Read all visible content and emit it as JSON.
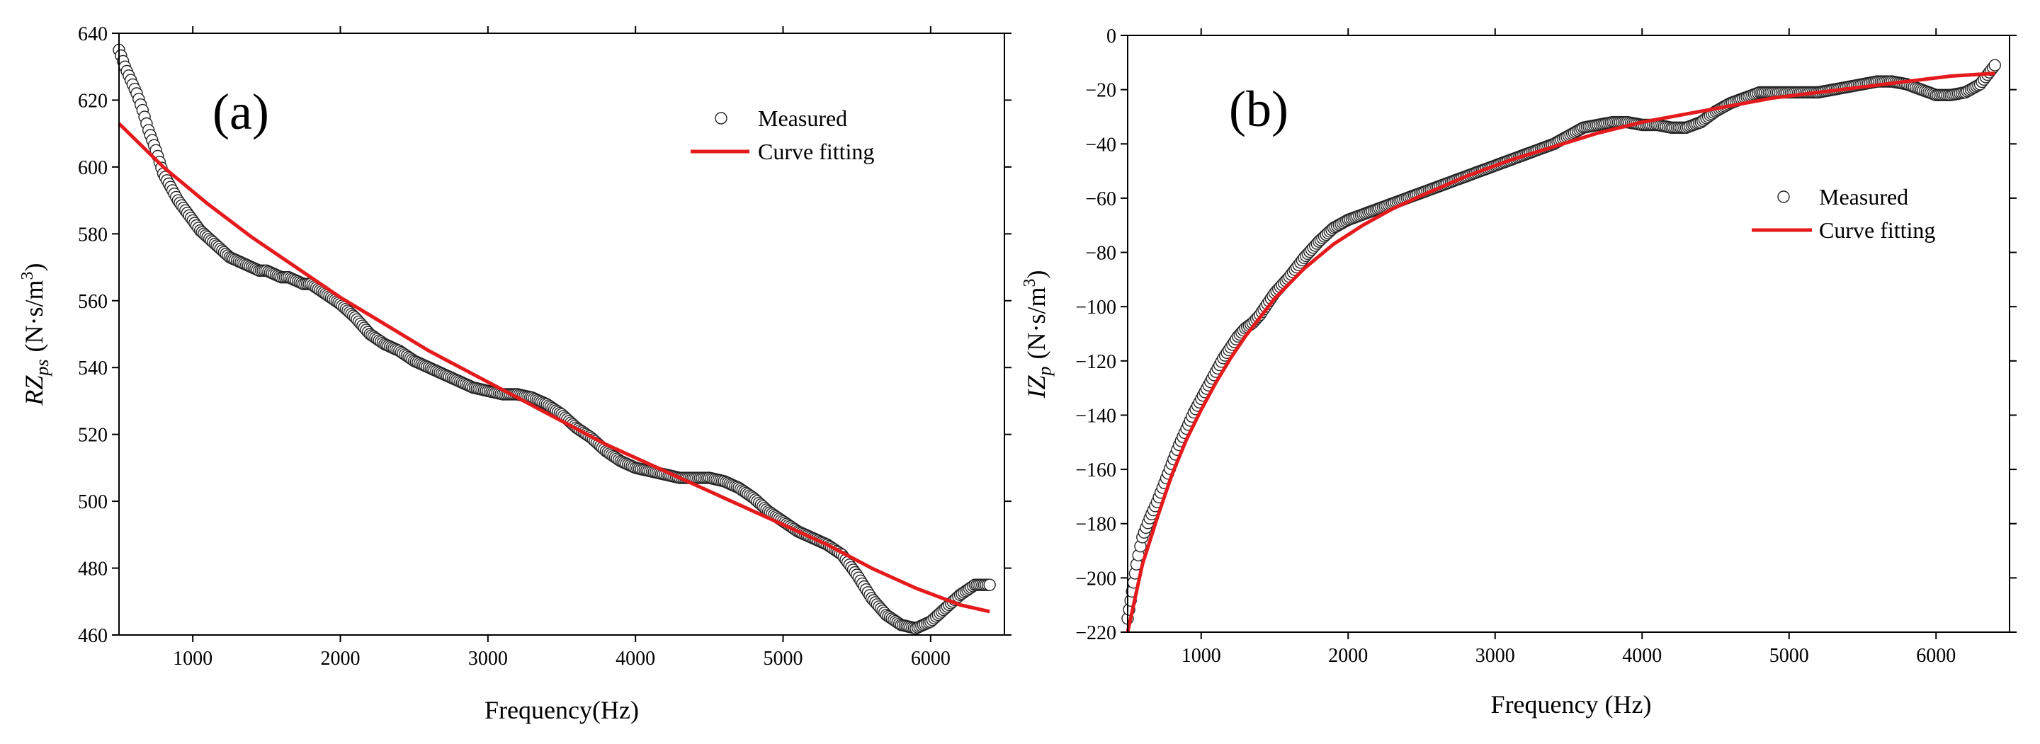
{
  "chart_data": [
    {
      "type": "scatter",
      "panel_label": "(a)",
      "xlabel": "Frequency(Hz)",
      "ylabel": {
        "main": "RZ",
        "sub": "ps",
        "unit_prefix": "(N·s/m",
        "unit_sup": "3",
        "unit_suffix": ")"
      },
      "xlim": [
        500,
        6500
      ],
      "ylim": [
        460,
        640
      ],
      "xticks": [
        1000,
        2000,
        3000,
        4000,
        5000,
        6000
      ],
      "yticks": [
        460,
        480,
        500,
        520,
        540,
        560,
        580,
        600,
        620,
        640
      ],
      "legend_position": "top-right",
      "series": [
        {
          "name": "Measured",
          "style": "open-circle",
          "x": [
            500,
            540,
            580,
            620,
            660,
            700,
            750,
            800,
            850,
            900,
            950,
            1000,
            1050,
            1100,
            1150,
            1200,
            1250,
            1300,
            1350,
            1400,
            1450,
            1500,
            1550,
            1600,
            1650,
            1700,
            1750,
            1800,
            1900,
            2000,
            2100,
            2200,
            2300,
            2400,
            2500,
            2600,
            2700,
            2800,
            2900,
            3000,
            3100,
            3200,
            3300,
            3400,
            3500,
            3600,
            3700,
            3800,
            3900,
            4000,
            4100,
            4200,
            4300,
            4400,
            4500,
            4600,
            4700,
            4800,
            4900,
            5000,
            5100,
            5200,
            5300,
            5400,
            5500,
            5600,
            5700,
            5800,
            5900,
            6000,
            6100,
            6200,
            6300,
            6400
          ],
          "y": [
            635,
            630,
            626,
            622,
            617,
            611,
            605,
            598,
            594,
            590,
            587,
            584,
            581,
            579,
            577,
            575,
            573,
            572,
            571,
            570,
            569,
            569,
            568,
            567,
            567,
            566,
            565,
            565,
            562,
            559,
            555,
            550,
            547,
            545,
            542,
            540,
            538,
            536,
            534,
            533,
            532,
            532,
            531,
            529,
            526,
            522,
            519,
            515,
            512,
            510,
            509,
            508,
            507,
            507,
            507,
            506,
            504,
            501,
            497,
            494,
            491,
            489,
            487,
            484,
            478,
            471,
            466,
            463,
            462,
            464,
            468,
            472,
            475,
            475
          ]
        },
        {
          "name": "Curve fitting",
          "style": "line",
          "x": [
            500,
            800,
            1100,
            1400,
            1700,
            2000,
            2300,
            2600,
            2900,
            3200,
            3500,
            3800,
            4100,
            4400,
            4700,
            5000,
            5300,
            5600,
            5900,
            6200,
            6400
          ],
          "y": [
            613,
            600,
            589,
            579,
            570,
            561,
            553,
            545,
            538,
            531,
            524,
            517,
            511,
            505,
            499,
            493,
            487,
            480,
            474,
            469,
            467
          ]
        }
      ]
    },
    {
      "type": "scatter",
      "panel_label": "(b)",
      "xlabel": "Frequency (Hz)",
      "ylabel": {
        "main": "IZ",
        "sub": "p",
        "unit_prefix": "(N·s/m",
        "unit_sup": "3",
        "unit_suffix": ")"
      },
      "xlim": [
        500,
        6500
      ],
      "ylim": [
        -220,
        0
      ],
      "xticks": [
        1000,
        2000,
        3000,
        4000,
        5000,
        6000
      ],
      "yticks": [
        -220,
        -200,
        -180,
        -160,
        -140,
        -120,
        -100,
        -80,
        -60,
        -40,
        -20,
        0
      ],
      "legend_position": "center-right",
      "series": [
        {
          "name": "Measured",
          "style": "open-circle",
          "x": [
            500,
            530,
            560,
            600,
            650,
            700,
            750,
            800,
            850,
            900,
            950,
            1000,
            1050,
            1100,
            1150,
            1200,
            1250,
            1300,
            1350,
            1400,
            1450,
            1500,
            1600,
            1700,
            1800,
            1900,
            2000,
            2100,
            2200,
            2300,
            2400,
            2500,
            2600,
            2700,
            2800,
            2900,
            3000,
            3100,
            3200,
            3300,
            3400,
            3500,
            3600,
            3700,
            3800,
            3900,
            4000,
            4100,
            4200,
            4300,
            4400,
            4500,
            4600,
            4700,
            4800,
            4900,
            5000,
            5100,
            5200,
            5300,
            5400,
            5500,
            5600,
            5700,
            5800,
            5900,
            6000,
            6100,
            6200,
            6300,
            6400
          ],
          "y": [
            -215,
            -205,
            -195,
            -185,
            -178,
            -172,
            -165,
            -158,
            -151,
            -145,
            -139,
            -134,
            -129,
            -124,
            -119,
            -115,
            -111,
            -108,
            -106,
            -103,
            -99,
            -95,
            -89,
            -82,
            -76,
            -71,
            -68,
            -66,
            -64,
            -62,
            -60,
            -58,
            -56,
            -54,
            -52,
            -50,
            -48,
            -46,
            -44,
            -42,
            -40,
            -37,
            -34,
            -33,
            -32,
            -32,
            -33,
            -33,
            -34,
            -34,
            -32,
            -28,
            -25,
            -23,
            -21,
            -21,
            -21,
            -21,
            -21,
            -20,
            -19,
            -18,
            -17,
            -17,
            -18,
            -20,
            -22,
            -22,
            -21,
            -18,
            -11
          ]
        },
        {
          "name": "Curve fitting",
          "style": "line",
          "x": [
            500,
            600,
            700,
            800,
            900,
            1000,
            1100,
            1200,
            1300,
            1400,
            1500,
            1700,
            1900,
            2100,
            2300,
            2500,
            2800,
            3100,
            3400,
            3700,
            4000,
            4300,
            4600,
            4900,
            5200,
            5500,
            5800,
            6100,
            6400
          ],
          "y": [
            -220,
            -195,
            -178,
            -162,
            -149,
            -138,
            -128,
            -119,
            -111,
            -104,
            -97,
            -86,
            -77,
            -70,
            -64,
            -59,
            -52,
            -46,
            -41,
            -36,
            -32,
            -29,
            -26,
            -23,
            -21,
            -19,
            -17,
            -15,
            -14
          ]
        }
      ]
    }
  ]
}
